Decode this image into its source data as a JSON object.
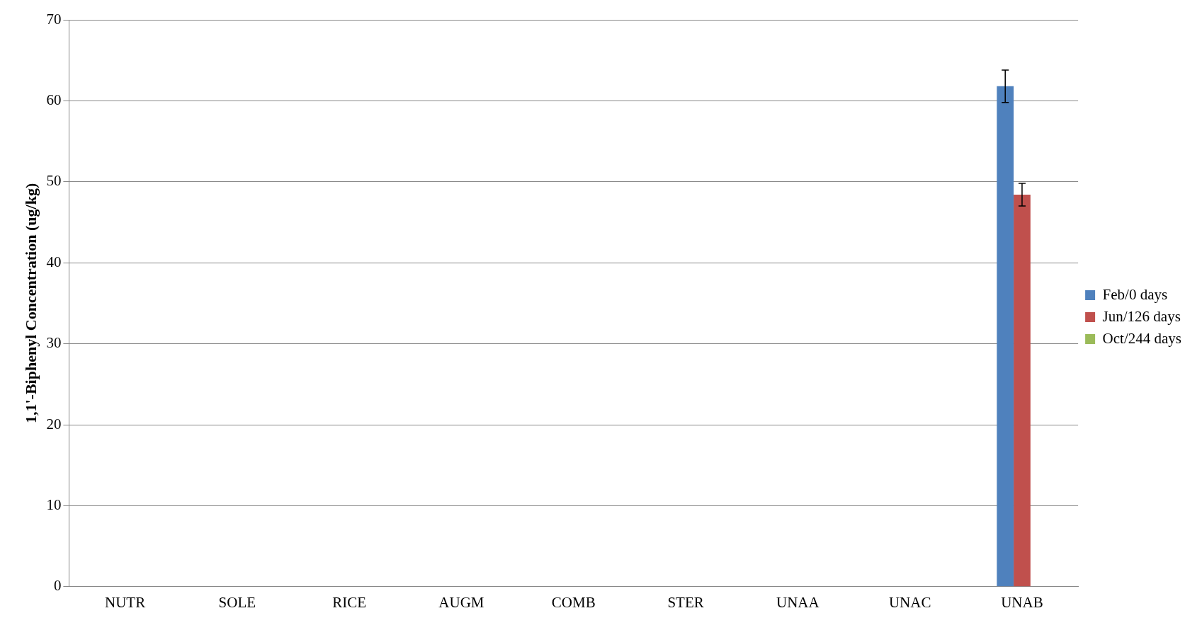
{
  "chart_data": {
    "type": "bar",
    "ylabel": "1,1'-Biphenyl Concentration (ug/kg)",
    "categories": [
      "NUTR",
      "SOLE",
      "RICE",
      "AUGM",
      "COMB",
      "STER",
      "UNAA",
      "UNAC",
      "UNAB"
    ],
    "series": [
      {
        "name": "Feb/0 days",
        "color": "#4f81bd",
        "values": [
          0,
          0,
          0,
          0,
          0,
          0,
          0,
          0,
          61.8
        ],
        "errors": [
          null,
          null,
          null,
          null,
          null,
          null,
          null,
          null,
          2
        ]
      },
      {
        "name": "Jun/126 days",
        "color": "#c0504d",
        "values": [
          0,
          0,
          0,
          0,
          0,
          0,
          0,
          0,
          48.4
        ],
        "errors": [
          null,
          null,
          null,
          null,
          null,
          null,
          null,
          null,
          1.4
        ]
      },
      {
        "name": "Oct/244 days",
        "color": "#9bbb59",
        "values": [
          0,
          0,
          0,
          0,
          0,
          0,
          0,
          0,
          0
        ]
      }
    ],
    "ylim": [
      0,
      70
    ],
    "yticks": [
      0,
      10,
      20,
      30,
      40,
      50,
      60,
      70
    ],
    "grid": "y",
    "legend": "right"
  }
}
